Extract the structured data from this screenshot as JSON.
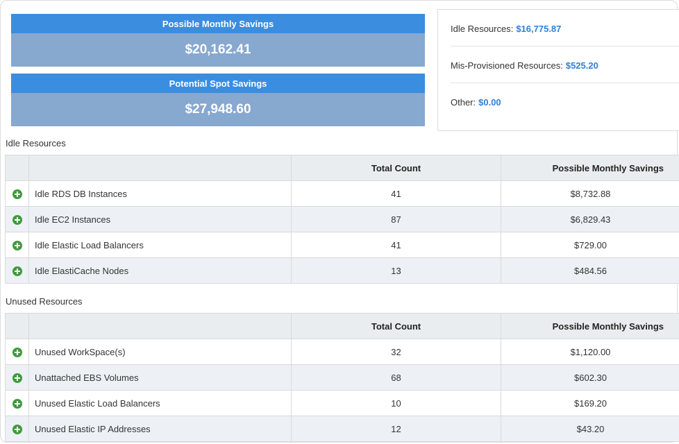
{
  "summary": {
    "monthly": {
      "label": "Possible Monthly Savings",
      "value": "$20,162.41"
    },
    "spot": {
      "label": "Potential Spot Savings",
      "value": "$27,948.60"
    }
  },
  "breakdown": [
    {
      "label": "Idle Resources:",
      "amount": "$16,775.87"
    },
    {
      "label": "Mis-Provisioned Resources:",
      "amount": "$525.20"
    },
    {
      "label": "Other:",
      "amount": "$0.00"
    }
  ],
  "idle": {
    "title": "Idle Resources",
    "headers": {
      "count": "Total Count",
      "savings": "Possible Monthly Savings"
    },
    "rows": [
      {
        "name": "Idle RDS DB Instances",
        "count": "41",
        "savings": "$8,732.88"
      },
      {
        "name": "Idle EC2 Instances",
        "count": "87",
        "savings": "$6,829.43"
      },
      {
        "name": "Idle Elastic Load Balancers",
        "count": "41",
        "savings": "$729.00"
      },
      {
        "name": "Idle ElastiCache Nodes",
        "count": "13",
        "savings": "$484.56"
      }
    ]
  },
  "unused": {
    "title": "Unused Resources",
    "headers": {
      "count": "Total Count",
      "savings": "Possible Monthly Savings"
    },
    "rows": [
      {
        "name": "Unused WorkSpace(s)",
        "count": "32",
        "savings": "$1,120.00"
      },
      {
        "name": "Unattached EBS Volumes",
        "count": "68",
        "savings": "$602.30"
      },
      {
        "name": "Unused Elastic Load Balancers",
        "count": "10",
        "savings": "$169.20"
      },
      {
        "name": "Unused Elastic IP Addresses",
        "count": "12",
        "savings": "$43.20"
      }
    ]
  },
  "icons": {
    "expand": "plus-circle-icon"
  },
  "colors": {
    "header_blue": "#3b8de0",
    "value_blue": "#87a8cf",
    "amount_link": "#2f7fd6",
    "expand_green": "#3f9a3a"
  }
}
